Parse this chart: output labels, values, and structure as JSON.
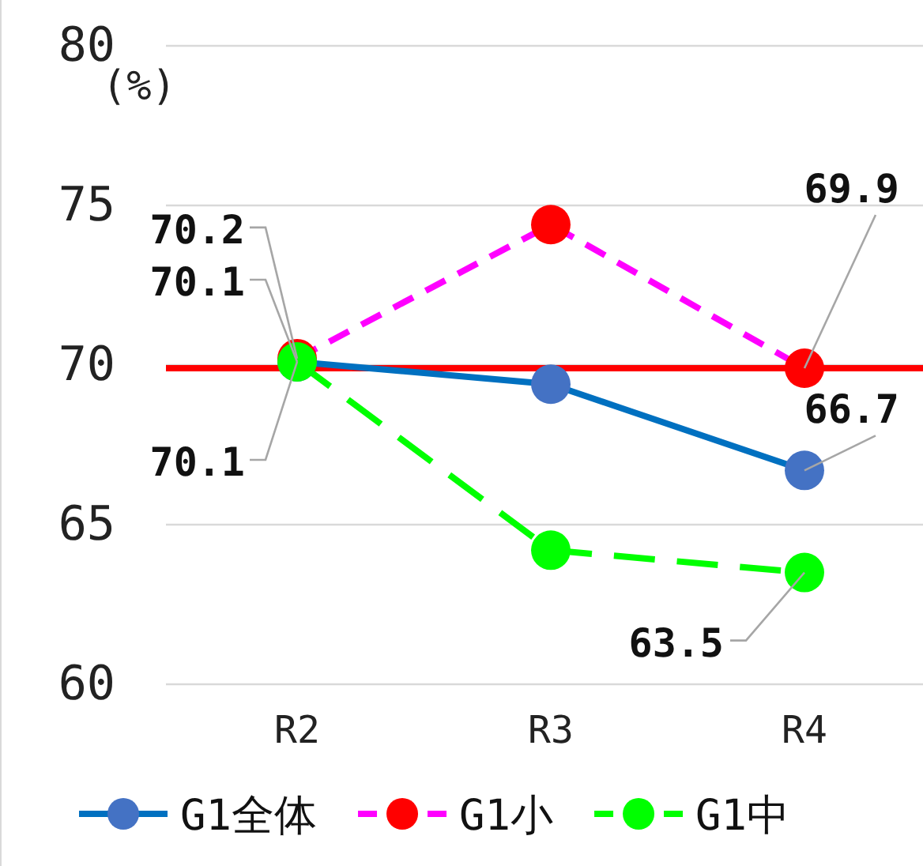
{
  "chart_data": {
    "type": "line",
    "ylabel": "(%)",
    "categories": [
      "R2",
      "R3",
      "R4"
    ],
    "series": [
      {
        "name": "G1全体",
        "color": "#0070c0",
        "colors": [
          "#4472c4",
          "#4472c4",
          "#4472c4"
        ],
        "line_style": "solid",
        "values": [
          70.1,
          69.4,
          66.7
        ],
        "value_labels": [
          "70.1",
          null,
          "66.7"
        ]
      },
      {
        "name": "G1小",
        "color": "#ff00ff",
        "colors": [
          "#ff0000",
          "#ff0000",
          "#ff0000"
        ],
        "line_style": "dashed",
        "values": [
          70.2,
          74.4,
          69.9
        ],
        "value_labels": [
          "70.2",
          null,
          "69.9"
        ]
      },
      {
        "name": "G1中",
        "color": "#00ff00",
        "colors": [
          "#00ff00",
          "#00ff00",
          "#00ff00"
        ],
        "line_style": "dashed",
        "values": [
          70.1,
          64.2,
          63.5
        ],
        "value_labels": [
          "70.1",
          null,
          "63.5"
        ]
      }
    ],
    "ylim": [
      60,
      80
    ],
    "yticks": [
      60,
      65,
      70,
      75,
      80
    ],
    "grid": "y",
    "marker": "circle",
    "legend": "bottom",
    "ref_lines": [
      {
        "axis": "y",
        "value": 69.9,
        "color": "#ff0000"
      }
    ]
  }
}
